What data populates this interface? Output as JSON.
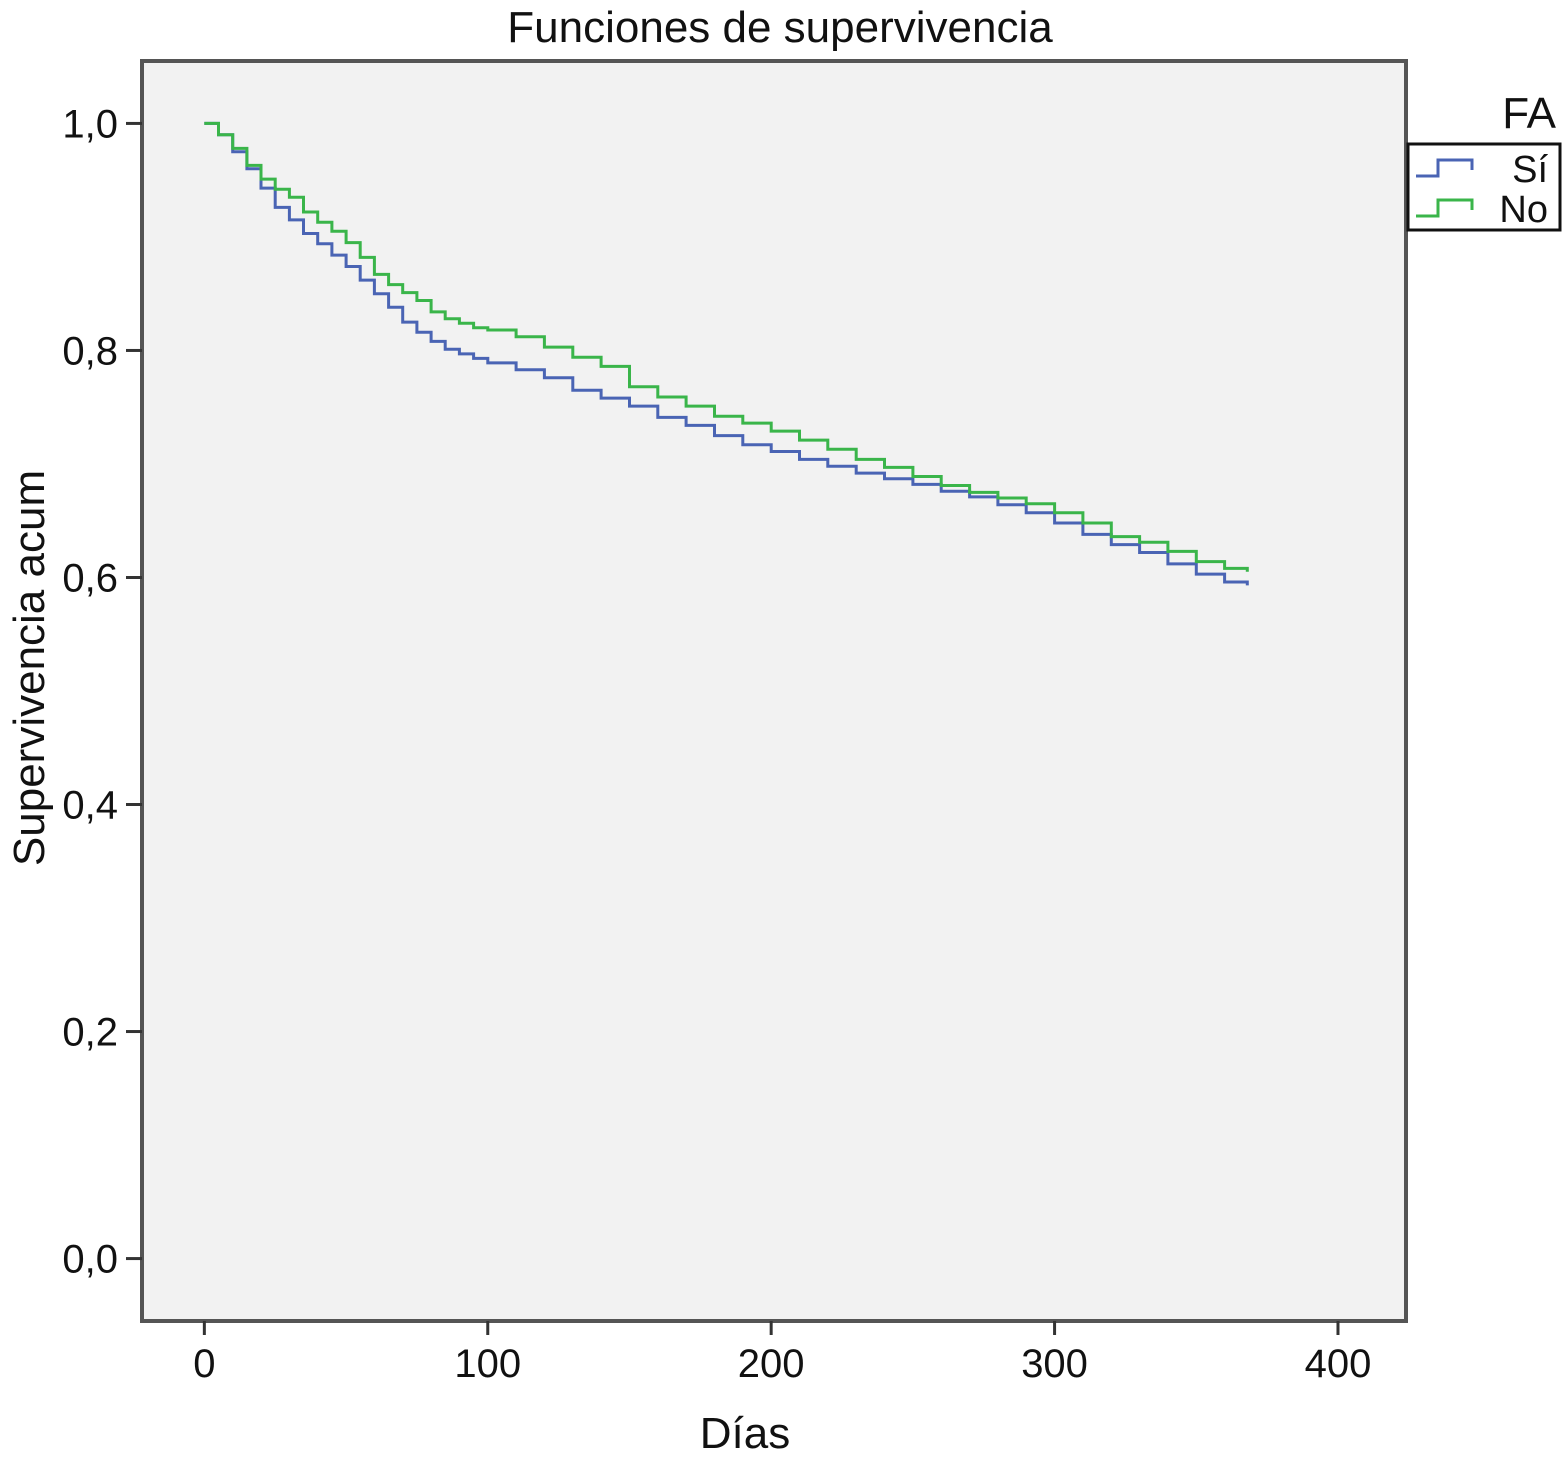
{
  "chart_data": {
    "type": "line",
    "step": true,
    "title": "Funciones de supervivencia",
    "xlabel": "Días",
    "ylabel": "Supervivencia acum",
    "xlim": [
      -22,
      424
    ],
    "ylim": [
      -0.055,
      1.055
    ],
    "xticks": [
      0,
      100,
      200,
      300,
      400
    ],
    "xtick_labels": [
      "0",
      "100",
      "200",
      "300",
      "400"
    ],
    "yticks": [
      0.0,
      0.2,
      0.4,
      0.6,
      0.8,
      1.0
    ],
    "ytick_labels": [
      "0,0",
      "0,2",
      "0,4",
      "0,6",
      "0,8",
      "1,0"
    ],
    "grid": false,
    "plot_background": "#f2f2f2",
    "legend": {
      "title": "FA",
      "position": "top-right outside"
    },
    "series": [
      {
        "name": "Sí",
        "color": "#4a64b4",
        "x": [
          0,
          5,
          10,
          15,
          20,
          25,
          30,
          35,
          40,
          45,
          50,
          55,
          60,
          65,
          70,
          75,
          80,
          85,
          90,
          95,
          100,
          110,
          120,
          130,
          140,
          150,
          160,
          170,
          180,
          190,
          200,
          210,
          220,
          230,
          240,
          250,
          260,
          270,
          280,
          290,
          300,
          310,
          320,
          330,
          340,
          350,
          360,
          368
        ],
        "y": [
          1.0,
          0.99,
          0.975,
          0.96,
          0.943,
          0.926,
          0.915,
          0.903,
          0.894,
          0.884,
          0.874,
          0.862,
          0.85,
          0.838,
          0.825,
          0.816,
          0.808,
          0.801,
          0.797,
          0.793,
          0.789,
          0.783,
          0.776,
          0.765,
          0.758,
          0.751,
          0.741,
          0.734,
          0.725,
          0.717,
          0.711,
          0.704,
          0.698,
          0.692,
          0.687,
          0.682,
          0.676,
          0.671,
          0.664,
          0.657,
          0.648,
          0.638,
          0.629,
          0.622,
          0.612,
          0.603,
          0.596,
          0.593
        ]
      },
      {
        "name": "No",
        "color": "#3ab54a",
        "x": [
          0,
          5,
          10,
          15,
          20,
          25,
          30,
          35,
          40,
          45,
          50,
          55,
          60,
          65,
          70,
          75,
          80,
          85,
          90,
          95,
          100,
          110,
          120,
          130,
          140,
          150,
          160,
          170,
          180,
          190,
          200,
          210,
          220,
          230,
          240,
          250,
          260,
          270,
          280,
          290,
          300,
          310,
          320,
          330,
          340,
          350,
          360,
          368
        ],
        "y": [
          1.0,
          0.99,
          0.978,
          0.963,
          0.951,
          0.942,
          0.935,
          0.922,
          0.913,
          0.905,
          0.895,
          0.882,
          0.867,
          0.858,
          0.851,
          0.844,
          0.834,
          0.828,
          0.824,
          0.82,
          0.818,
          0.812,
          0.803,
          0.794,
          0.786,
          0.768,
          0.759,
          0.751,
          0.742,
          0.736,
          0.729,
          0.721,
          0.713,
          0.704,
          0.697,
          0.689,
          0.681,
          0.675,
          0.67,
          0.665,
          0.657,
          0.648,
          0.636,
          0.631,
          0.623,
          0.614,
          0.608,
          0.605
        ]
      }
    ]
  }
}
